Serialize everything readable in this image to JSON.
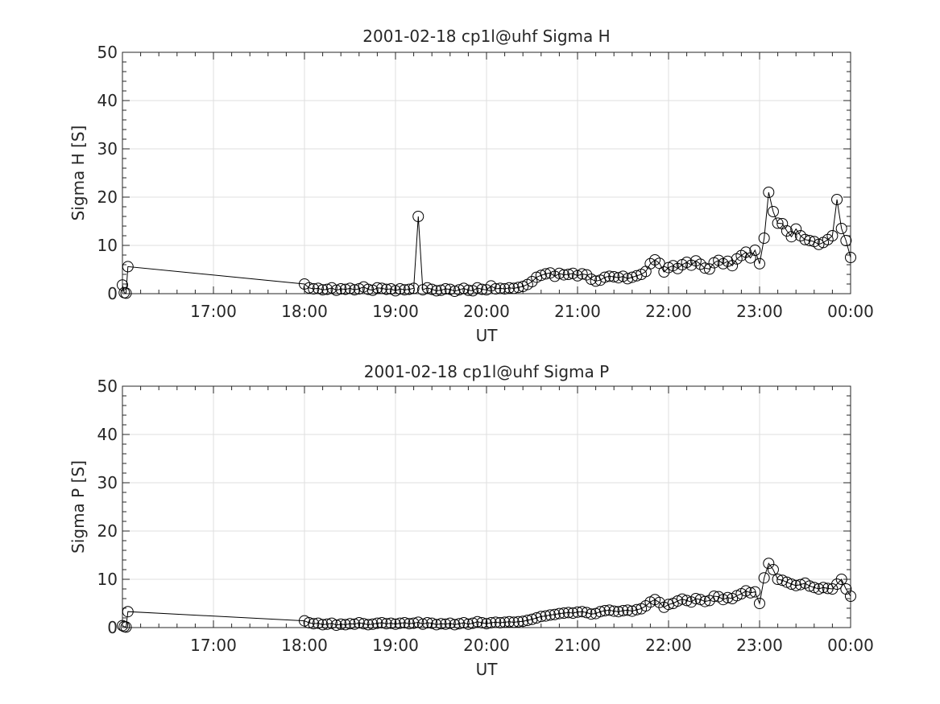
{
  "chart_data": [
    {
      "type": "line",
      "title": "2001-02-18  cp1l@uhf Sigma H",
      "xlabel": "UT",
      "ylabel": "Sigma H [S]",
      "xlim": [
        16,
        24
      ],
      "ylim": [
        0,
        50
      ],
      "xticks": [
        17,
        18,
        19,
        20,
        21,
        22,
        23,
        24
      ],
      "xtick_labels": [
        "17:00",
        "18:00",
        "19:00",
        "20:00",
        "21:00",
        "22:00",
        "23:00",
        "00:00"
      ],
      "yticks": [
        0,
        10,
        20,
        30,
        40,
        50
      ],
      "ytick_labels": [
        "0",
        "10",
        "20",
        "30",
        "40",
        "50"
      ],
      "grid": true,
      "marker": "open-circle",
      "series": [
        {
          "name": "Sigma H",
          "x": [
            16.0,
            16.02,
            16.04,
            16.06,
            18.0,
            18.05,
            18.1,
            18.15,
            18.2,
            18.25,
            18.3,
            18.35,
            18.4,
            18.45,
            18.5,
            18.55,
            18.6,
            18.65,
            18.7,
            18.75,
            18.8,
            18.85,
            18.9,
            18.95,
            19.0,
            19.05,
            19.1,
            19.15,
            19.2,
            19.25,
            19.3,
            19.35,
            19.4,
            19.45,
            19.5,
            19.55,
            19.6,
            19.65,
            19.7,
            19.75,
            19.8,
            19.85,
            19.9,
            19.95,
            20.0,
            20.05,
            20.1,
            20.15,
            20.2,
            20.25,
            20.3,
            20.35,
            20.4,
            20.45,
            20.5,
            20.55,
            20.6,
            20.65,
            20.7,
            20.75,
            20.8,
            20.85,
            20.9,
            20.95,
            21.0,
            21.05,
            21.1,
            21.15,
            21.2,
            21.25,
            21.3,
            21.35,
            21.4,
            21.45,
            21.5,
            21.55,
            21.6,
            21.65,
            21.7,
            21.75,
            21.8,
            21.85,
            21.9,
            21.95,
            22.0,
            22.05,
            22.1,
            22.15,
            22.2,
            22.25,
            22.3,
            22.35,
            22.4,
            22.45,
            22.5,
            22.55,
            22.6,
            22.65,
            22.7,
            22.75,
            22.8,
            22.85,
            22.9,
            22.95,
            23.0,
            23.05,
            23.1,
            23.15,
            23.2,
            23.25,
            23.3,
            23.35,
            23.4,
            23.45,
            23.5,
            23.55,
            23.6,
            23.65,
            23.7,
            23.75,
            23.8,
            23.85,
            23.9,
            23.95,
            24.0
          ],
          "values": [
            1.8,
            0.2,
            0.1,
            5.6,
            2.0,
            1.2,
            1.0,
            1.1,
            0.8,
            0.9,
            1.2,
            0.7,
            1.0,
            0.9,
            1.1,
            0.8,
            1.0,
            1.4,
            0.9,
            0.7,
            1.2,
            1.1,
            0.9,
            1.0,
            0.6,
            1.0,
            0.8,
            0.9,
            1.1,
            16.0,
            0.8,
            1.2,
            0.9,
            0.6,
            0.7,
            1.0,
            0.9,
            0.5,
            0.8,
            1.1,
            0.7,
            0.6,
            1.2,
            0.9,
            0.8,
            1.6,
            1.0,
            1.1,
            1.0,
            1.2,
            1.1,
            1.3,
            1.5,
            1.9,
            2.5,
            3.4,
            3.8,
            4.1,
            4.3,
            3.6,
            4.2,
            3.9,
            4.0,
            4.2,
            3.7,
            4.1,
            3.9,
            3.0,
            2.6,
            2.8,
            3.4,
            3.6,
            3.5,
            3.3,
            3.6,
            3.1,
            3.4,
            3.7,
            4.0,
            4.6,
            6.2,
            7.0,
            6.3,
            4.5,
            5.4,
            5.8,
            5.2,
            6.0,
            6.5,
            5.9,
            6.8,
            6.1,
            5.3,
            5.1,
            6.4,
            6.9,
            6.2,
            6.7,
            5.8,
            7.2,
            7.9,
            8.6,
            7.4,
            9.0,
            6.2,
            11.5,
            21.0,
            17.0,
            14.6,
            14.5,
            13.0,
            11.8,
            13.4,
            12.0,
            11.2,
            11.0,
            10.8,
            10.2,
            10.6,
            11.2,
            12.0,
            19.5,
            13.5,
            11.0,
            7.5
          ]
        }
      ]
    },
    {
      "type": "line",
      "title": "2001-02-18  cp1l@uhf Sigma P",
      "xlabel": "UT",
      "ylabel": "Sigma P [S]",
      "xlim": [
        16,
        24
      ],
      "ylim": [
        0,
        50
      ],
      "xticks": [
        17,
        18,
        19,
        20,
        21,
        22,
        23,
        24
      ],
      "xtick_labels": [
        "17:00",
        "18:00",
        "19:00",
        "20:00",
        "21:00",
        "22:00",
        "23:00",
        "00:00"
      ],
      "yticks": [
        0,
        10,
        20,
        30,
        40,
        50
      ],
      "ytick_labels": [
        "0",
        "10",
        "20",
        "30",
        "40",
        "50"
      ],
      "grid": true,
      "marker": "open-circle",
      "series": [
        {
          "name": "Sigma P",
          "x": [
            16.0,
            16.02,
            16.04,
            16.06,
            18.0,
            18.05,
            18.1,
            18.15,
            18.2,
            18.25,
            18.3,
            18.35,
            18.4,
            18.45,
            18.5,
            18.55,
            18.6,
            18.65,
            18.7,
            18.75,
            18.8,
            18.85,
            18.9,
            18.95,
            19.0,
            19.05,
            19.1,
            19.15,
            19.2,
            19.25,
            19.3,
            19.35,
            19.4,
            19.45,
            19.5,
            19.55,
            19.6,
            19.65,
            19.7,
            19.75,
            19.8,
            19.85,
            19.9,
            19.95,
            20.0,
            20.05,
            20.1,
            20.15,
            20.2,
            20.25,
            20.3,
            20.35,
            20.4,
            20.45,
            20.5,
            20.55,
            20.6,
            20.65,
            20.7,
            20.75,
            20.8,
            20.85,
            20.9,
            20.95,
            21.0,
            21.05,
            21.1,
            21.15,
            21.2,
            21.25,
            21.3,
            21.35,
            21.4,
            21.45,
            21.5,
            21.55,
            21.6,
            21.65,
            21.7,
            21.75,
            21.8,
            21.85,
            21.9,
            21.95,
            22.0,
            22.05,
            22.1,
            22.15,
            22.2,
            22.25,
            22.3,
            22.35,
            22.4,
            22.45,
            22.5,
            22.55,
            22.6,
            22.65,
            22.7,
            22.75,
            22.8,
            22.85,
            22.9,
            22.95,
            23.0,
            23.05,
            23.1,
            23.15,
            23.2,
            23.25,
            23.3,
            23.35,
            23.4,
            23.45,
            23.5,
            23.55,
            23.6,
            23.65,
            23.7,
            23.75,
            23.8,
            23.85,
            23.9,
            23.95,
            24.0
          ],
          "values": [
            0.4,
            0.2,
            0.1,
            3.3,
            1.4,
            1.0,
            0.8,
            0.9,
            0.6,
            0.7,
            0.9,
            0.5,
            0.7,
            0.6,
            0.8,
            0.7,
            1.0,
            0.8,
            0.6,
            0.7,
            0.9,
            1.0,
            0.8,
            0.9,
            0.7,
            0.9,
            1.0,
            0.8,
            0.9,
            1.1,
            0.7,
            1.0,
            0.9,
            0.6,
            0.8,
            0.7,
            0.9,
            0.6,
            0.8,
            1.0,
            0.7,
            0.9,
            1.2,
            1.0,
            0.8,
            1.0,
            1.1,
            1.0,
            1.1,
            1.2,
            1.1,
            1.2,
            1.3,
            1.5,
            1.7,
            2.0,
            2.3,
            2.4,
            2.6,
            2.7,
            2.9,
            3.0,
            3.1,
            3.0,
            3.2,
            3.3,
            3.1,
            2.8,
            2.9,
            3.3,
            3.5,
            3.6,
            3.4,
            3.3,
            3.5,
            3.6,
            3.4,
            3.7,
            3.9,
            4.5,
            5.3,
            5.8,
            5.2,
            4.2,
            4.8,
            5.0,
            5.5,
            5.9,
            5.6,
            5.3,
            6.0,
            5.8,
            5.4,
            5.6,
            6.5,
            6.4,
            5.8,
            6.2,
            6.0,
            6.6,
            7.0,
            7.6,
            7.2,
            7.4,
            5.0,
            10.3,
            13.3,
            12.0,
            10.0,
            9.8,
            9.4,
            9.0,
            8.7,
            8.9,
            9.2,
            8.6,
            8.3,
            8.0,
            8.3,
            8.1,
            8.0,
            9.0,
            10.0,
            8.0,
            6.5
          ]
        }
      ]
    }
  ]
}
